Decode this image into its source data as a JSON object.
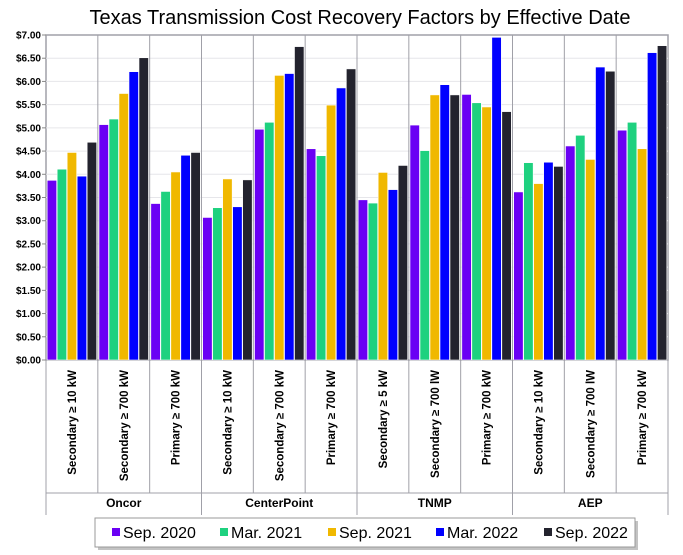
{
  "chart_data": {
    "type": "bar",
    "title": "Texas Transmission Cost Recovery Factors by Effective Date",
    "xlabel": "",
    "ylabel": "",
    "ylim": [
      0,
      7
    ],
    "yticks": [
      "$0.00",
      "$0.50",
      "$1.00",
      "$1.50",
      "$2.00",
      "$2.50",
      "$3.00",
      "$3.50",
      "$4.00",
      "$4.50",
      "$5.00",
      "$5.50",
      "$6.00",
      "$6.50",
      "$7.00"
    ],
    "grid": true,
    "legend_position": "bottom",
    "groups": [
      {
        "name": "Oncor",
        "categories": [
          "Secondary ≥ 10 kW",
          "Secondary ≥ 700 kW",
          "Primary ≥ 700 kW"
        ]
      },
      {
        "name": "CenterPoint",
        "categories": [
          "Secondary ≥ 10 kW",
          "Secondary ≥ 700 kW",
          "Primary ≥ 700 kW"
        ]
      },
      {
        "name": "TNMP",
        "categories": [
          "Secondary ≥ 5 kW",
          "Secondary ≥ 700 lW",
          "Primary ≥ 700 kW"
        ]
      },
      {
        "name": "AEP",
        "categories": [
          "Secondary ≥ 10 kW",
          "Secondary ≥ 700 lW",
          "Primary ≥ 700 kW"
        ]
      }
    ],
    "series": [
      {
        "name": "Sep. 2020",
        "color": "#6a00f4",
        "values": [
          3.87,
          5.07,
          3.37,
          3.07,
          4.97,
          4.55,
          3.45,
          5.06,
          5.72,
          3.62,
          4.61,
          4.95
        ]
      },
      {
        "name": "Mar. 2021",
        "color": "#1ed17f",
        "values": [
          4.11,
          5.19,
          3.63,
          3.28,
          5.12,
          4.4,
          3.38,
          4.51,
          5.54,
          4.25,
          4.84,
          5.12
        ]
      },
      {
        "name": "Sep. 2021",
        "color": "#f0b800",
        "values": [
          4.47,
          5.74,
          4.05,
          3.9,
          6.13,
          5.49,
          4.04,
          5.71,
          5.45,
          3.8,
          4.32,
          4.55
        ]
      },
      {
        "name": "Mar. 2022",
        "color": "#0000ff",
        "values": [
          3.96,
          6.21,
          4.41,
          3.3,
          6.17,
          5.86,
          3.67,
          5.93,
          6.95,
          4.26,
          6.31,
          6.62
        ]
      },
      {
        "name": "Sep. 2022",
        "color": "#23232e",
        "values": [
          4.69,
          6.51,
          4.47,
          3.88,
          6.75,
          6.27,
          4.19,
          5.71,
          5.35,
          4.17,
          6.22,
          6.77
        ]
      }
    ]
  }
}
